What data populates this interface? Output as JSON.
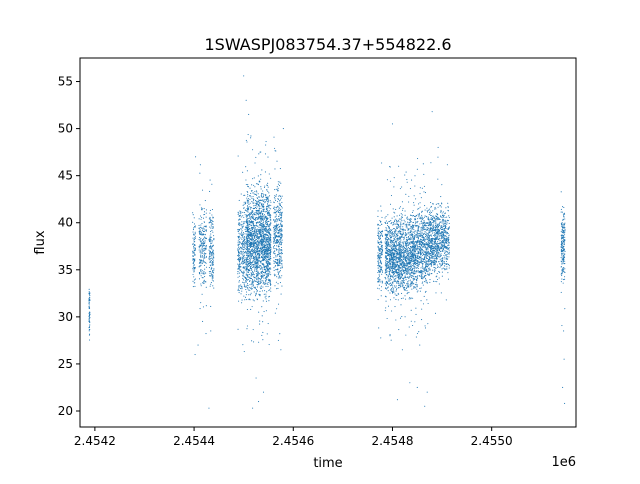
{
  "chart_data": {
    "type": "scatter",
    "title": "1SWASPJ083754.37+554822.6",
    "xlabel": "time",
    "ylabel": "flux",
    "x_offset_label": "1e6",
    "xlim": [
      2454170,
      2455170
    ],
    "ylim": [
      18.3,
      57.5
    ],
    "x_ticks": [
      2454200,
      2454400,
      2454600,
      2454800,
      2455000
    ],
    "x_tick_labels": [
      "2.4542",
      "2.4544",
      "2.4546",
      "2.4548",
      "2.4550"
    ],
    "y_ticks": [
      20,
      25,
      30,
      35,
      40,
      45,
      50,
      55
    ],
    "y_tick_labels": [
      "20",
      "25",
      "30",
      "35",
      "40",
      "45",
      "50",
      "55"
    ],
    "grid": false,
    "legend": "none",
    "marker_color": "#1f77b4",
    "series": [
      {
        "clusters": [
          {
            "x_start": 2454188,
            "x_end": 2454190,
            "n": 60,
            "y_center": 30.5,
            "y_half_range": 4.0,
            "outlier_fraction": 0.0
          },
          {
            "x_start": 2454397,
            "x_end": 2454403,
            "n": 90,
            "y_center": 36.5,
            "y_half_range": 5.5,
            "outlier_fraction": 0.03
          },
          {
            "x_start": 2454410,
            "x_end": 2454425,
            "n": 220,
            "y_center": 37.5,
            "y_half_range": 6.5,
            "outlier_fraction": 0.04
          },
          {
            "x_start": 2454430,
            "x_end": 2454440,
            "n": 160,
            "y_center": 37.0,
            "y_half_range": 6.0,
            "outlier_fraction": 0.05
          },
          {
            "x_start": 2454488,
            "x_end": 2454505,
            "n": 320,
            "y_center": 37.0,
            "y_half_range": 7.0,
            "outlier_fraction": 0.06
          },
          {
            "x_start": 2454505,
            "x_end": 2454555,
            "n": 1900,
            "y_center": 38.0,
            "y_half_range": 7.5,
            "outlier_fraction": 0.05
          },
          {
            "x_start": 2454560,
            "x_end": 2454578,
            "n": 380,
            "y_center": 38.5,
            "y_half_range": 7.0,
            "outlier_fraction": 0.07
          },
          {
            "x_start": 2454770,
            "x_end": 2454780,
            "n": 180,
            "y_center": 37.0,
            "y_half_range": 5.5,
            "outlier_fraction": 0.03
          },
          {
            "x_start": 2454785,
            "x_end": 2454850,
            "n": 1700,
            "y_center": 36.5,
            "y_half_range": 5.5,
            "outlier_fraction": 0.05
          },
          {
            "x_start": 2454850,
            "x_end": 2454870,
            "n": 450,
            "y_center": 37.5,
            "y_half_range": 6.0,
            "outlier_fraction": 0.06
          },
          {
            "x_start": 2454870,
            "x_end": 2454892,
            "n": 520,
            "y_center": 38.0,
            "y_half_range": 5.0,
            "outlier_fraction": 0.04
          },
          {
            "x_start": 2454892,
            "x_end": 2454915,
            "n": 380,
            "y_center": 38.0,
            "y_half_range": 5.0,
            "outlier_fraction": 0.03
          },
          {
            "x_start": 2455140,
            "x_end": 2455148,
            "n": 200,
            "y_center": 37.5,
            "y_half_range": 5.0,
            "outlier_fraction": 0.05
          }
        ],
        "outliers": [
          [
            2454500,
            55.6
          ],
          [
            2454505,
            53.0
          ],
          [
            2454510,
            51.5
          ],
          [
            2454533,
            47.5
          ],
          [
            2454518,
            20.3
          ],
          [
            2454530,
            21.0
          ],
          [
            2454525,
            23.5
          ],
          [
            2454540,
            22.0
          ],
          [
            2454580,
            50.0
          ],
          [
            2454575,
            26.5
          ],
          [
            2454570,
            27.5
          ],
          [
            2454403,
            47.0
          ],
          [
            2454408,
            27.0
          ],
          [
            2454402,
            26.0
          ],
          [
            2454430,
            20.3
          ],
          [
            2454800,
            50.5
          ],
          [
            2454810,
            21.2
          ],
          [
            2454835,
            23.0
          ],
          [
            2454850,
            22.5
          ],
          [
            2454880,
            51.8
          ],
          [
            2454892,
            48.0
          ],
          [
            2454865,
            20.5
          ],
          [
            2454870,
            22.0
          ],
          [
            2455145,
            28.5
          ],
          [
            2455146,
            25.5
          ],
          [
            2455143,
            22.5
          ],
          [
            2455147,
            20.8
          ],
          [
            2454795,
            28.0
          ],
          [
            2454820,
            26.5
          ],
          [
            2454855,
            27.0
          ]
        ]
      }
    ]
  }
}
